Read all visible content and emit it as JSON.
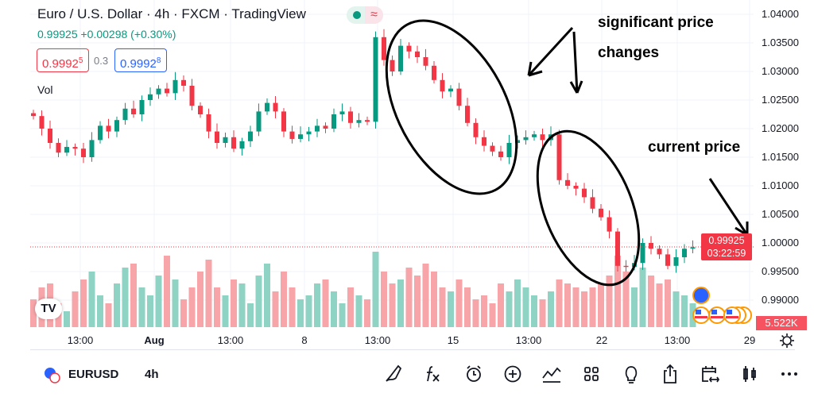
{
  "header": {
    "title": "Euro / U.S. Dollar · 4h · FXCM · TradingView",
    "change": "0.99925 +0.00298 (+0.30%)",
    "bid": "0.9992",
    "bid_sup": "5",
    "spread": "0.3",
    "ask": "0.9992",
    "ask_sup": "8",
    "volume_label": "Vol",
    "status_dot_color": "#089981",
    "status_wave": "≈"
  },
  "price_axis": [
    "1.04000",
    "1.03500",
    "1.03000",
    "1.02500",
    "1.02000",
    "1.01500",
    "1.01000",
    "1.00500",
    "1.00000",
    "0.99500",
    "0.99000"
  ],
  "last_price": {
    "value": "0.99925",
    "countdown": "03:22:59"
  },
  "volume_badge": "5.522K",
  "time_axis": [
    {
      "label": "13:00",
      "bold": false
    },
    {
      "label": "Aug",
      "bold": true
    },
    {
      "label": "13:00",
      "bold": false
    },
    {
      "label": "8",
      "bold": false
    },
    {
      "label": "13:00",
      "bold": false
    },
    {
      "label": "15",
      "bold": false
    },
    {
      "label": "13:00",
      "bold": false
    },
    {
      "label": "22",
      "bold": false
    },
    {
      "label": "13:00",
      "bold": false
    },
    {
      "label": "29",
      "bold": false
    }
  ],
  "annotations": {
    "note1_line1": "significant price",
    "note1_line2": "changes",
    "note2": "current price"
  },
  "logo": "TV",
  "bottom_bar": {
    "symbol": "EURUSD",
    "interval": "4h",
    "tools": [
      "draw-icon",
      "indicators-fx-icon",
      "alert-icon",
      "add-icon",
      "compare-icon",
      "layout-grid-icon",
      "ideas-bulb-icon",
      "share-icon",
      "replay-calendar-icon",
      "chart-type-candles-icon",
      "more-icon"
    ]
  },
  "colors": {
    "up": "#089981",
    "down": "#f23645",
    "up_vol": "#8fd3c4",
    "down_vol": "#f7a5a9",
    "accent": "#2962ff"
  },
  "chart_data": {
    "type": "candlestick",
    "ylim": [
      0.9875,
      1.0425
    ],
    "closes": [
      1.0222,
      1.02,
      1.0175,
      1.0158,
      1.0168,
      1.0165,
      1.015,
      1.018,
      1.0205,
      1.0195,
      1.0215,
      1.0235,
      1.0225,
      1.025,
      1.026,
      1.027,
      1.0262,
      1.0285,
      1.0275,
      1.024,
      1.0225,
      1.0195,
      1.0175,
      1.0185,
      1.0165,
      1.0178,
      1.0195,
      1.023,
      1.0245,
      1.023,
      1.0195,
      1.0182,
      1.019,
      1.0195,
      1.0205,
      1.02,
      1.0225,
      1.023,
      1.021,
      1.0215,
      1.0212,
      1.036,
      1.032,
      1.03,
      1.0345,
      1.0335,
      1.0325,
      1.031,
      1.0285,
      1.0265,
      1.027,
      1.024,
      1.021,
      1.0185,
      1.017,
      1.016,
      1.015,
      1.0175,
      1.018,
      1.0185,
      1.019,
      1.018,
      1.019,
      1.011,
      1.01,
      1.0095,
      1.008,
      1.006,
      1.0045,
      1.002,
      0.996,
      0.9958,
      0.9965,
      1.0,
      0.999,
      0.998,
      0.996,
      0.9975,
      0.999,
      0.99925
    ],
    "volumes": [
      0.35,
      0.5,
      0.55,
      0.3,
      0.2,
      0.45,
      0.6,
      0.7,
      0.4,
      0.3,
      0.55,
      0.75,
      0.8,
      0.5,
      0.4,
      0.65,
      0.9,
      0.6,
      0.35,
      0.5,
      0.7,
      0.85,
      0.5,
      0.4,
      0.6,
      0.55,
      0.3,
      0.65,
      0.8,
      0.45,
      0.7,
      0.5,
      0.35,
      0.4,
      0.55,
      0.6,
      0.45,
      0.3,
      0.5,
      0.4,
      0.35,
      0.95,
      0.7,
      0.55,
      0.6,
      0.75,
      0.65,
      0.8,
      0.7,
      0.5,
      0.45,
      0.6,
      0.5,
      0.35,
      0.4,
      0.3,
      0.55,
      0.45,
      0.6,
      0.5,
      0.4,
      0.35,
      0.45,
      0.6,
      0.55,
      0.5,
      0.45,
      0.5,
      0.55,
      0.65,
      0.9,
      0.7,
      0.5,
      0.75,
      0.65,
      0.55,
      0.6,
      0.45,
      0.4,
      0.3
    ]
  }
}
